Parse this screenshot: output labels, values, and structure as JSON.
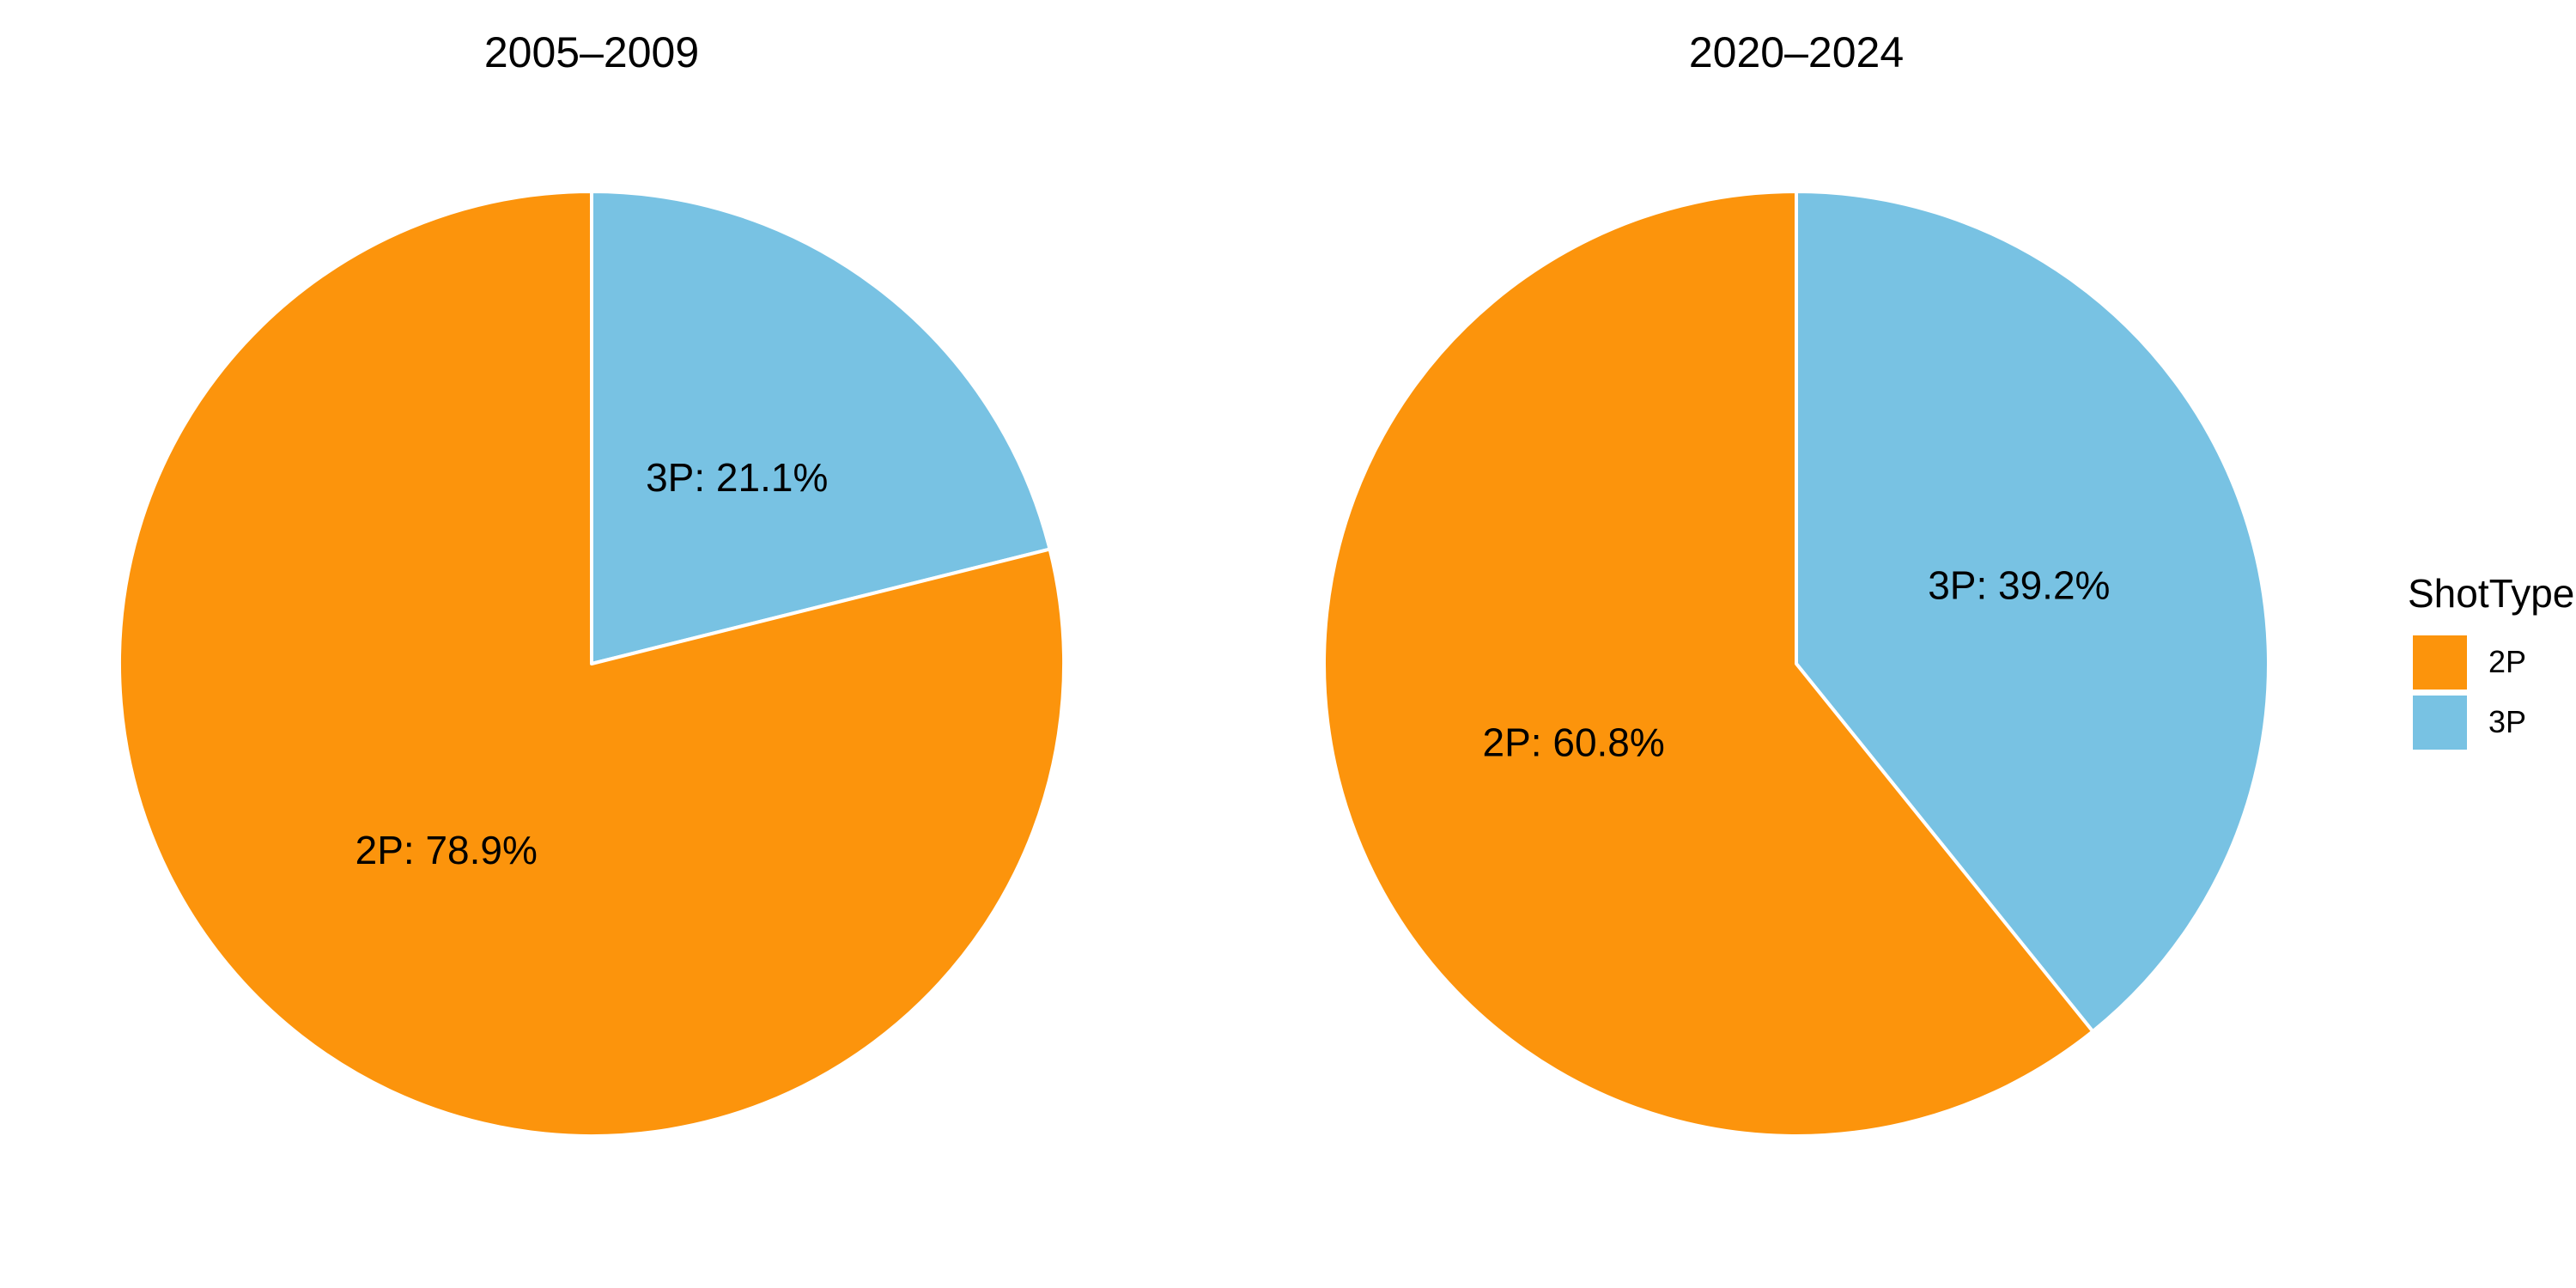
{
  "chart_data": [
    {
      "type": "pie",
      "title": "2005–2009",
      "slices": [
        {
          "label": "2P",
          "value": 78.9,
          "display": "2P: 78.9%"
        },
        {
          "label": "3P",
          "value": 21.1,
          "display": "3P: 21.1%"
        }
      ]
    },
    {
      "type": "pie",
      "title": "2020–2024",
      "slices": [
        {
          "label": "2P",
          "value": 60.8,
          "display": "2P: 60.8%"
        },
        {
          "label": "3P",
          "value": 39.2,
          "display": "3P: 39.2%"
        }
      ]
    }
  ],
  "legend": {
    "title": "ShotType",
    "items": [
      {
        "label": "2P",
        "color": "#FC940C"
      },
      {
        "label": "3P",
        "color": "#78C2E3"
      }
    ]
  },
  "colors": {
    "2P": "#FC940C",
    "3P": "#78C2E3",
    "slice_border": "#ffffff"
  }
}
